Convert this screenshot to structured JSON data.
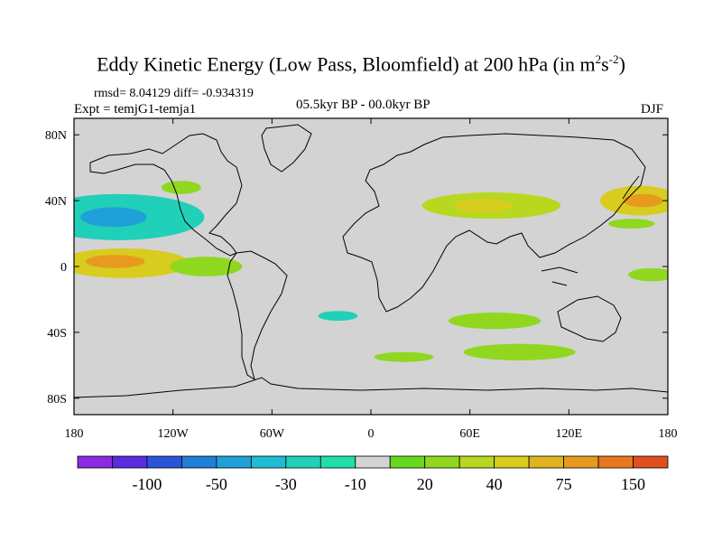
{
  "title": {
    "main": "Eddy Kinetic Energy (Low Pass, Bloomfield) at 200 hPa (in m",
    "sup1": "2",
    "mid": "s",
    "sup2": "-2",
    "end": ")"
  },
  "subtitle": {
    "stats": "rmsd= 8.04129 diff= -0.934319",
    "experiment": "Expt = temjG1-temja1",
    "period": "05.5kyr BP - 00.0kyr BP",
    "season": "DJF"
  },
  "map": {
    "lat_labels": [
      "80N",
      "40N",
      "0",
      "40S",
      "80S"
    ],
    "lon_labels": [
      "180",
      "120W",
      "60W",
      "0",
      "60E",
      "120E",
      "180"
    ],
    "lat_ticks": [
      80,
      40,
      0,
      -40,
      -80
    ],
    "lon_ticks": [
      -180,
      -120,
      -60,
      0,
      60,
      120,
      180
    ],
    "lat_range": [
      -90,
      90
    ],
    "lon_range": [
      -180,
      180
    ],
    "background_color": "#d3d3d3",
    "anomaly_regions": [
      {
        "name": "north-pacific-negative",
        "center": [
          -153,
          30
        ],
        "size": [
          52,
          14
        ],
        "level": -30
      },
      {
        "name": "north-pacific-core",
        "center": [
          -156,
          30
        ],
        "size": [
          20,
          6
        ],
        "level": -50
      },
      {
        "name": "tropical-pacific-positive",
        "center": [
          -150,
          2
        ],
        "size": [
          40,
          9
        ],
        "level": 40
      },
      {
        "name": "tropical-pacific-core",
        "center": [
          -155,
          3
        ],
        "size": [
          18,
          4
        ],
        "level": 75
      },
      {
        "name": "east-pacific-positive",
        "center": [
          -100,
          0
        ],
        "size": [
          22,
          6
        ],
        "level": 20
      },
      {
        "name": "south-pacific-negative",
        "center": [
          -145,
          -22
        ],
        "size": [
          30,
          5
        ],
        "level": -10
      },
      {
        "name": "southeast-pacific-negative",
        "center": [
          -170,
          -40
        ],
        "size": [
          28,
          5
        ],
        "level": -10
      },
      {
        "name": "north-atlantic-negative",
        "center": [
          -40,
          78
        ],
        "size": [
          22,
          5
        ],
        "level": -10
      },
      {
        "name": "alaska-negative",
        "center": [
          -170,
          60
        ],
        "size": [
          20,
          4
        ],
        "level": -10
      },
      {
        "name": "canada-positive",
        "center": [
          -115,
          48
        ],
        "size": [
          12,
          4
        ],
        "level": 20
      },
      {
        "name": "central-asia-positive",
        "center": [
          73,
          37
        ],
        "size": [
          42,
          8
        ],
        "level": 30
      },
      {
        "name": "central-asia-core",
        "center": [
          68,
          37
        ],
        "size": [
          18,
          4
        ],
        "level": 40
      },
      {
        "name": "arabia-negative",
        "center": [
          52,
          20
        ],
        "size": [
          10,
          4
        ],
        "level": -10
      },
      {
        "name": "northwest-pacific-positive",
        "center": [
          163,
          40
        ],
        "size": [
          24,
          9
        ],
        "level": 40
      },
      {
        "name": "northwest-pacific-core",
        "center": [
          165,
          40
        ],
        "size": [
          12,
          4
        ],
        "level": 75
      },
      {
        "name": "west-pacific-positive",
        "center": [
          158,
          26
        ],
        "size": [
          14,
          3
        ],
        "level": 20
      },
      {
        "name": "southern-ocean-atlantic-negative",
        "center": [
          -18,
          -28
        ],
        "size": [
          38,
          8
        ],
        "level": -10
      },
      {
        "name": "southern-ocean-core",
        "center": [
          -20,
          -30
        ],
        "size": [
          12,
          3
        ],
        "level": -30
      },
      {
        "name": "indian-ocean-positive",
        "center": [
          75,
          -33
        ],
        "size": [
          28,
          5
        ],
        "level": 20
      },
      {
        "name": "indian-ocean-south-positive",
        "center": [
          90,
          -52
        ],
        "size": [
          34,
          5
        ],
        "level": 20
      },
      {
        "name": "south-atlantic-positive",
        "center": [
          20,
          -55
        ],
        "size": [
          18,
          3
        ],
        "level": 20
      },
      {
        "name": "australia-east-negative",
        "center": [
          132,
          -28
        ],
        "size": [
          12,
          4
        ],
        "level": -10
      },
      {
        "name": "southwest-pacific-positive",
        "center": [
          170,
          -5
        ],
        "size": [
          14,
          4
        ],
        "level": 20
      },
      {
        "name": "south-pacific-far-negative",
        "center": [
          -165,
          -62
        ],
        "size": [
          16,
          3
        ],
        "level": -10
      }
    ]
  },
  "colorbar": {
    "colors": [
      "#8a2be2",
      "#5b2be0",
      "#2b55d8",
      "#1f7fd8",
      "#1fa0d8",
      "#1fbcd2",
      "#20d0b8",
      "#1fe0a8",
      "#d3d3d3",
      "#66d81f",
      "#8fd81f",
      "#b8d81f",
      "#d8cc1f",
      "#e0b41f",
      "#e89a1f",
      "#e8781f",
      "#e0501f"
    ],
    "labels": [
      "-100",
      "-50",
      "-30",
      "-10",
      "20",
      "40",
      "75",
      "150"
    ],
    "levels": [
      -150,
      -100,
      -75,
      -50,
      -40,
      -30,
      -20,
      -10,
      10,
      20,
      30,
      40,
      50,
      75,
      100,
      150
    ]
  }
}
